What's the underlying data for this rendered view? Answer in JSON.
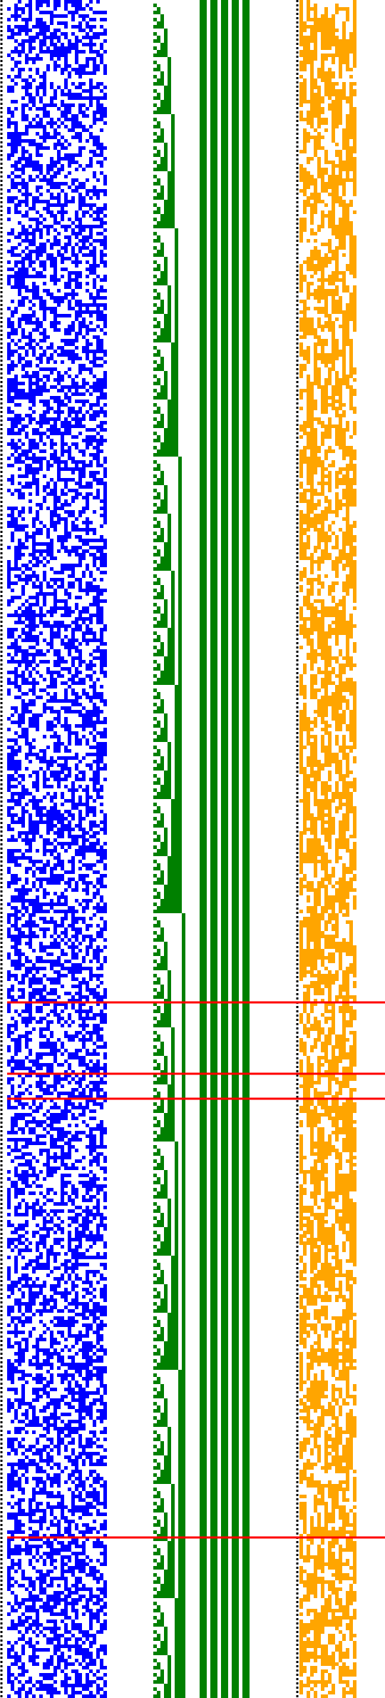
{
  "visualization": {
    "rows": 476,
    "colors": {
      "background": "#ffffff",
      "random_bits": "#0000ff",
      "binary_counter": "#008000",
      "derived_bits": "#ffa500",
      "separator": "#000000",
      "marker": "#ff0000"
    },
    "regions": [
      {
        "name": "random-bits-region",
        "columns": 28,
        "color": "#0000ff",
        "pattern": "random"
      },
      {
        "name": "binary-counter-region",
        "columns": 27,
        "color": "#008000",
        "pattern": "counter"
      },
      {
        "name": "derived-bits-region",
        "columns": 16,
        "color": "#ffa500",
        "pattern": "random-sparse"
      }
    ],
    "separators": [
      {
        "name": "left-edge-separator",
        "style": "dotted"
      },
      {
        "name": "middle-separator",
        "style": "dotted"
      }
    ],
    "marker_rows": [
      281,
      301,
      308,
      431
    ]
  }
}
